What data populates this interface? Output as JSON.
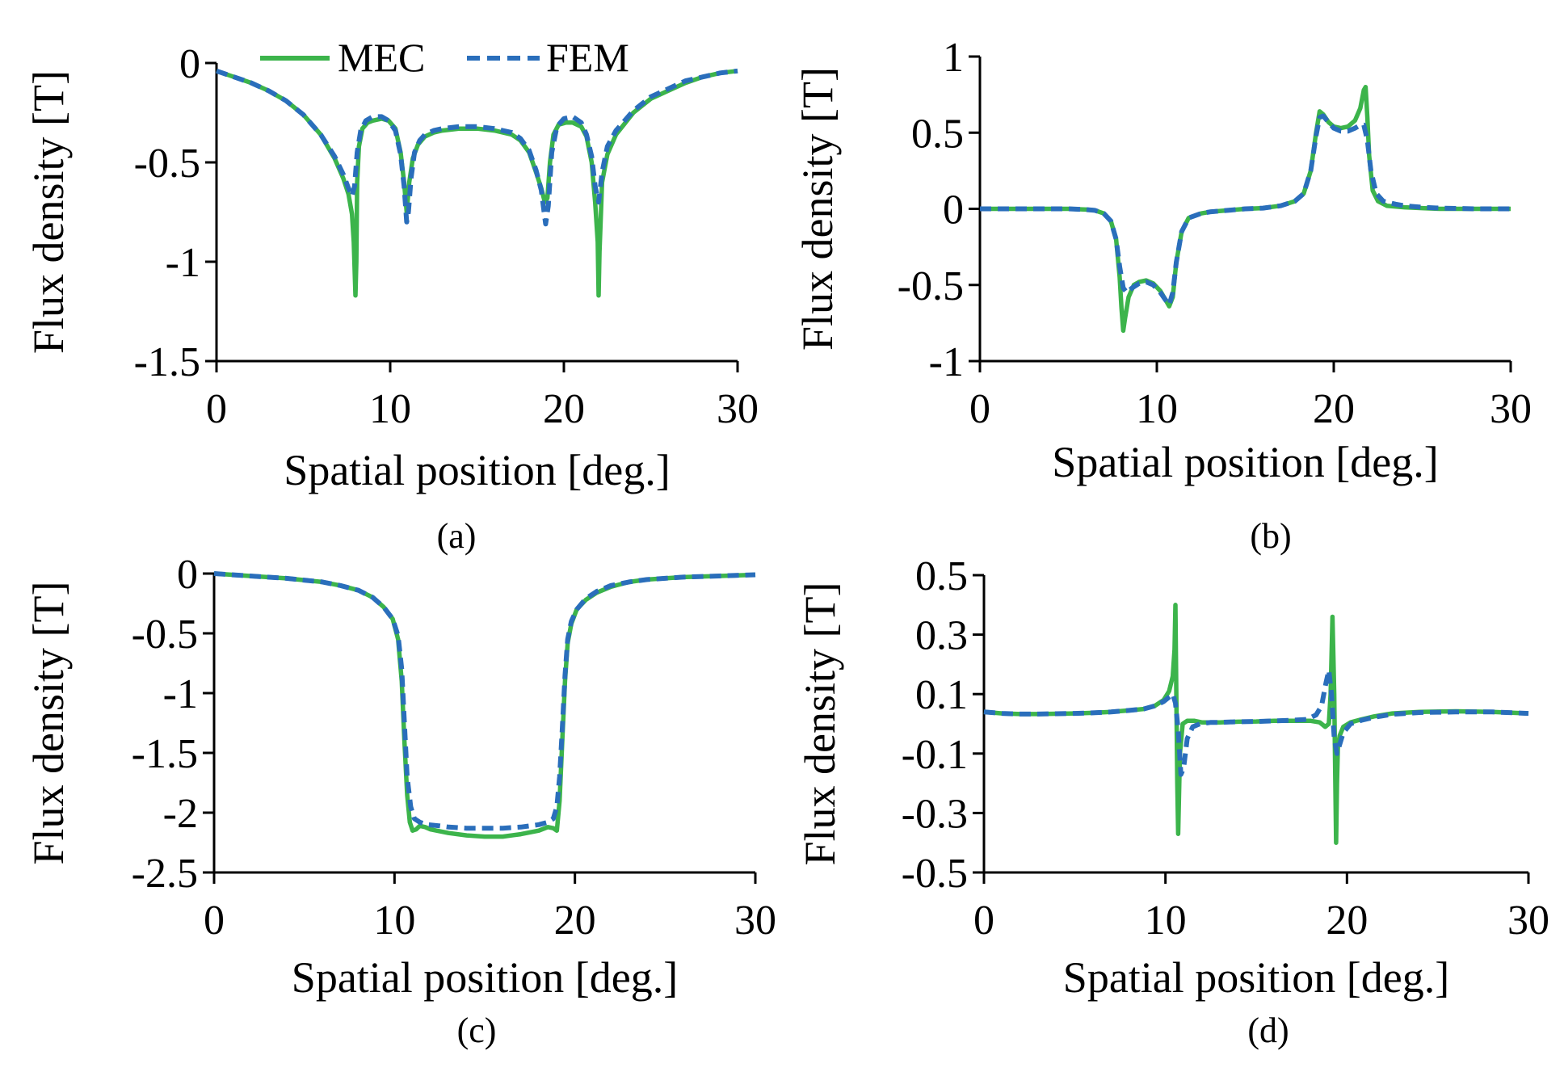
{
  "legend": {
    "mec_label": "MEC",
    "fem_label": "FEM",
    "mec_color": "#3cb44b",
    "fem_color": "#2a6ebb"
  },
  "chart_data": [
    {
      "type": "line",
      "panel_label": "(a)",
      "xlabel": "Spatial position [deg.]",
      "ylabel": "Flux density [T]",
      "xlim": [
        0,
        30
      ],
      "ylim": [
        -1.5,
        0
      ],
      "xticks": [
        "0",
        "10",
        "20",
        "30"
      ],
      "yticks": [
        "0",
        "-0.5",
        "-1",
        "-1.5"
      ],
      "grid": false,
      "legend_position": "top-center",
      "series": [
        {
          "name": "MEC",
          "style": "solid",
          "x": [
            0,
            1,
            2,
            3,
            4,
            5,
            6,
            6.8,
            7.3,
            7.6,
            7.8,
            7.9,
            8.0,
            8.05,
            8.1,
            8.2,
            8.4,
            8.7,
            9.0,
            9.5,
            9.9,
            10.3,
            10.6,
            10.8,
            10.95,
            11.1,
            11.3,
            11.6,
            12,
            12.5,
            13,
            14,
            15,
            16,
            17,
            17.5,
            18,
            18.4,
            18.7,
            18.9,
            19.05,
            19.2,
            19.4,
            19.7,
            20.1,
            20.5,
            21.0,
            21.3,
            21.6,
            21.8,
            21.95,
            22.0,
            22.05,
            22.2,
            22.5,
            23,
            24,
            25,
            26,
            27,
            28,
            29,
            30
          ],
          "values": [
            -0.04,
            -0.07,
            -0.1,
            -0.14,
            -0.19,
            -0.26,
            -0.36,
            -0.48,
            -0.58,
            -0.66,
            -0.76,
            -0.9,
            -1.17,
            -1.0,
            -0.6,
            -0.42,
            -0.33,
            -0.3,
            -0.29,
            -0.28,
            -0.29,
            -0.33,
            -0.45,
            -0.6,
            -0.75,
            -0.6,
            -0.48,
            -0.41,
            -0.37,
            -0.35,
            -0.34,
            -0.33,
            -0.33,
            -0.34,
            -0.36,
            -0.39,
            -0.45,
            -0.55,
            -0.63,
            -0.7,
            -0.68,
            -0.5,
            -0.36,
            -0.31,
            -0.3,
            -0.3,
            -0.32,
            -0.37,
            -0.5,
            -0.7,
            -0.9,
            -1.17,
            -0.95,
            -0.6,
            -0.46,
            -0.36,
            -0.25,
            -0.18,
            -0.14,
            -0.1,
            -0.07,
            -0.05,
            -0.04
          ]
        },
        {
          "name": "FEM",
          "style": "dashed",
          "x": [
            0,
            1,
            2,
            3,
            4,
            5,
            6,
            6.8,
            7.3,
            7.6,
            7.8,
            7.95,
            8.1,
            8.3,
            8.6,
            9.0,
            9.5,
            9.9,
            10.3,
            10.6,
            10.8,
            10.95,
            11.05,
            11.2,
            11.4,
            11.7,
            12,
            12.5,
            13,
            14,
            15,
            16,
            17,
            17.5,
            18,
            18.4,
            18.7,
            18.95,
            19.1,
            19.3,
            19.6,
            20.0,
            20.5,
            21.0,
            21.3,
            21.6,
            21.8,
            22.0,
            22.2,
            22.5,
            23,
            24,
            25,
            26,
            27,
            28,
            29,
            30
          ],
          "values": [
            -0.04,
            -0.07,
            -0.1,
            -0.14,
            -0.19,
            -0.26,
            -0.36,
            -0.47,
            -0.56,
            -0.63,
            -0.67,
            -0.62,
            -0.45,
            -0.34,
            -0.29,
            -0.27,
            -0.27,
            -0.29,
            -0.34,
            -0.46,
            -0.62,
            -0.8,
            -0.75,
            -0.58,
            -0.45,
            -0.39,
            -0.36,
            -0.34,
            -0.33,
            -0.32,
            -0.32,
            -0.33,
            -0.35,
            -0.38,
            -0.44,
            -0.54,
            -0.64,
            -0.81,
            -0.72,
            -0.45,
            -0.32,
            -0.28,
            -0.27,
            -0.3,
            -0.36,
            -0.47,
            -0.62,
            -0.7,
            -0.55,
            -0.42,
            -0.34,
            -0.24,
            -0.17,
            -0.13,
            -0.09,
            -0.07,
            -0.05,
            -0.04
          ]
        }
      ]
    },
    {
      "type": "line",
      "panel_label": "(b)",
      "xlabel": "Spatial position [deg.]",
      "ylabel": "Flux density [T]",
      "xlim": [
        0,
        30
      ],
      "ylim": [
        -1,
        1
      ],
      "xticks": [
        "0",
        "10",
        "20",
        "30"
      ],
      "yticks": [
        "1",
        "0.5",
        "0",
        "-0.5",
        "-1"
      ],
      "grid": false,
      "series": [
        {
          "name": "MEC",
          "style": "solid",
          "x": [
            0,
            2,
            4,
            5,
            6,
            6.5,
            7.0,
            7.4,
            7.7,
            7.9,
            8.0,
            8.1,
            8.2,
            8.4,
            8.7,
            9.0,
            9.4,
            9.8,
            10.2,
            10.5,
            10.7,
            10.9,
            11.1,
            11.4,
            11.8,
            12.5,
            13,
            14,
            15,
            16,
            17,
            17.8,
            18.3,
            18.7,
            19.0,
            19.2,
            19.4,
            19.7,
            20.0,
            20.4,
            20.8,
            21.2,
            21.5,
            21.7,
            21.8,
            21.9,
            22.0,
            22.2,
            22.5,
            23,
            24,
            25,
            26,
            28,
            30
          ],
          "values": [
            0,
            0,
            0,
            0,
            -0.005,
            -0.01,
            -0.03,
            -0.08,
            -0.2,
            -0.45,
            -0.65,
            -0.8,
            -0.72,
            -0.58,
            -0.5,
            -0.48,
            -0.47,
            -0.49,
            -0.54,
            -0.6,
            -0.64,
            -0.58,
            -0.35,
            -0.15,
            -0.06,
            -0.03,
            -0.02,
            -0.01,
            0,
            0.005,
            0.02,
            0.05,
            0.1,
            0.25,
            0.5,
            0.64,
            0.62,
            0.57,
            0.54,
            0.53,
            0.54,
            0.58,
            0.66,
            0.78,
            0.8,
            0.6,
            0.35,
            0.12,
            0.05,
            0.02,
            0.01,
            0.005,
            0,
            0,
            0
          ]
        },
        {
          "name": "FEM",
          "style": "dashed",
          "x": [
            0,
            2,
            4,
            5,
            6,
            6.5,
            7.0,
            7.4,
            7.7,
            7.9,
            8.1,
            8.3,
            8.6,
            9.0,
            9.4,
            9.8,
            10.2,
            10.5,
            10.7,
            10.9,
            11.1,
            11.4,
            11.8,
            12.5,
            13,
            14,
            15,
            16,
            17,
            17.8,
            18.3,
            18.7,
            19.0,
            19.2,
            19.4,
            19.7,
            20.0,
            20.4,
            20.8,
            21.2,
            21.5,
            21.7,
            21.9,
            22.1,
            22.4,
            22.8,
            23.5,
            24,
            25,
            26,
            28,
            30
          ],
          "values": [
            0,
            0,
            0,
            0,
            -0.005,
            -0.01,
            -0.03,
            -0.08,
            -0.2,
            -0.38,
            -0.52,
            -0.55,
            -0.52,
            -0.49,
            -0.48,
            -0.5,
            -0.55,
            -0.6,
            -0.63,
            -0.55,
            -0.35,
            -0.15,
            -0.06,
            -0.03,
            -0.02,
            -0.01,
            0,
            0.005,
            0.02,
            0.05,
            0.1,
            0.25,
            0.48,
            0.6,
            0.61,
            0.57,
            0.53,
            0.51,
            0.51,
            0.53,
            0.55,
            0.55,
            0.45,
            0.25,
            0.1,
            0.05,
            0.03,
            0.02,
            0.01,
            0.005,
            0,
            0
          ]
        }
      ]
    },
    {
      "type": "line",
      "panel_label": "(c)",
      "xlabel": "Spatial position [deg.]",
      "ylabel": "Flux density [T]",
      "xlim": [
        0,
        30
      ],
      "ylim": [
        -2.5,
        0
      ],
      "xticks": [
        "0",
        "10",
        "20",
        "30"
      ],
      "yticks": [
        "0",
        "-0.5",
        "-1",
        "-1.5",
        "-2",
        "-2.5"
      ],
      "grid": false,
      "series": [
        {
          "name": "MEC",
          "style": "solid",
          "x": [
            0,
            2,
            4,
            6,
            7,
            8,
            8.8,
            9.4,
            9.9,
            10.2,
            10.4,
            10.55,
            10.7,
            10.85,
            11.0,
            11.2,
            11.4,
            11.7,
            12,
            13,
            14,
            15,
            16,
            17,
            18,
            18.5,
            18.8,
            19.0,
            19.15,
            19.3,
            19.45,
            19.6,
            19.8,
            20.1,
            20.6,
            21.2,
            22,
            23,
            24,
            26,
            28,
            30
          ],
          "values": [
            0,
            -0.02,
            -0.04,
            -0.07,
            -0.1,
            -0.14,
            -0.2,
            -0.28,
            -0.38,
            -0.55,
            -0.9,
            -1.4,
            -1.85,
            -2.08,
            -2.15,
            -2.14,
            -2.11,
            -2.12,
            -2.14,
            -2.17,
            -2.19,
            -2.2,
            -2.2,
            -2.18,
            -2.15,
            -2.12,
            -2.13,
            -2.15,
            -1.9,
            -1.4,
            -0.9,
            -0.58,
            -0.42,
            -0.3,
            -0.22,
            -0.16,
            -0.11,
            -0.07,
            -0.05,
            -0.03,
            -0.02,
            -0.01
          ]
        },
        {
          "name": "FEM",
          "style": "dashed",
          "x": [
            0,
            2,
            4,
            6,
            7,
            8,
            8.8,
            9.4,
            9.9,
            10.2,
            10.4,
            10.55,
            10.7,
            10.9,
            11.1,
            11.4,
            11.8,
            12.5,
            13,
            14,
            15,
            16,
            17,
            18,
            18.5,
            18.8,
            19.0,
            19.15,
            19.3,
            19.45,
            19.6,
            19.8,
            20.1,
            20.6,
            21.2,
            22,
            23,
            24,
            26,
            28,
            30
          ],
          "values": [
            0,
            -0.02,
            -0.04,
            -0.07,
            -0.1,
            -0.14,
            -0.2,
            -0.28,
            -0.38,
            -0.52,
            -0.8,
            -1.25,
            -1.7,
            -1.95,
            -2.05,
            -2.08,
            -2.1,
            -2.11,
            -2.12,
            -2.13,
            -2.13,
            -2.13,
            -2.12,
            -2.1,
            -2.08,
            -2.05,
            -1.95,
            -1.7,
            -1.3,
            -0.85,
            -0.55,
            -0.4,
            -0.3,
            -0.21,
            -0.15,
            -0.1,
            -0.07,
            -0.05,
            -0.03,
            -0.02,
            -0.01
          ]
        }
      ]
    },
    {
      "type": "line",
      "panel_label": "(d)",
      "xlabel": "Spatial position [deg.]",
      "ylabel": "Flux density [T]",
      "xlim": [
        0,
        30
      ],
      "ylim": [
        -0.5,
        0.5
      ],
      "xticks": [
        "0",
        "10",
        "20",
        "30"
      ],
      "yticks": [
        "0.5",
        "0.3",
        "0.1",
        "-0.1",
        "-0.3",
        "-0.5"
      ],
      "grid": false,
      "series": [
        {
          "name": "MEC",
          "style": "solid",
          "x": [
            0,
            1,
            2,
            3,
            4,
            5,
            6,
            7,
            8,
            8.8,
            9.4,
            9.9,
            10.2,
            10.4,
            10.5,
            10.55,
            10.6,
            10.65,
            10.7,
            10.8,
            10.95,
            11.2,
            11.6,
            12,
            13,
            14,
            15,
            16,
            17,
            18,
            18.5,
            18.8,
            19.0,
            19.1,
            19.2,
            19.3,
            19.35,
            19.4,
            19.45,
            19.5,
            19.6,
            19.8,
            20.2,
            20.8,
            21.5,
            22.5,
            24,
            26,
            28,
            30
          ],
          "values": [
            0.04,
            0.035,
            0.033,
            0.033,
            0.034,
            0.035,
            0.037,
            0.04,
            0.045,
            0.05,
            0.06,
            0.08,
            0.11,
            0.16,
            0.25,
            0.4,
            0.1,
            -0.2,
            -0.37,
            -0.1,
            0.0,
            0.01,
            0.01,
            0.005,
            0.005,
            0.007,
            0.008,
            0.01,
            0.01,
            0.01,
            0.005,
            -0.01,
            0.0,
            0.1,
            0.36,
            0.1,
            -0.15,
            -0.4,
            -0.2,
            -0.08,
            -0.04,
            -0.01,
            0.005,
            0.015,
            0.025,
            0.035,
            0.04,
            0.042,
            0.04,
            0.035
          ]
        },
        {
          "name": "FEM",
          "style": "dashed",
          "x": [
            0,
            1,
            2,
            3,
            4,
            5,
            6,
            7,
            8,
            8.8,
            9.4,
            9.9,
            10.2,
            10.4,
            10.55,
            10.7,
            10.85,
            11.0,
            11.2,
            11.5,
            11.9,
            12.5,
            13,
            14,
            15,
            16,
            17,
            17.8,
            18.3,
            18.6,
            18.85,
            19.0,
            19.15,
            19.3,
            19.45,
            19.6,
            19.8,
            20.2,
            20.8,
            21.5,
            22.5,
            24,
            26,
            28,
            30
          ],
          "values": [
            0.04,
            0.035,
            0.033,
            0.033,
            0.034,
            0.035,
            0.037,
            0.04,
            0.045,
            0.05,
            0.06,
            0.075,
            0.09,
            0.1,
            0.07,
            -0.02,
            -0.17,
            -0.15,
            -0.05,
            -0.01,
            0.0,
            0.005,
            0.005,
            0.007,
            0.008,
            0.01,
            0.012,
            0.015,
            0.03,
            0.06,
            0.14,
            0.18,
            0.1,
            -0.05,
            -0.1,
            -0.07,
            -0.03,
            0.0,
            0.012,
            0.022,
            0.032,
            0.038,
            0.04,
            0.04,
            0.035
          ]
        }
      ]
    }
  ]
}
